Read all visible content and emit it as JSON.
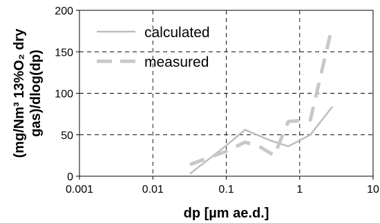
{
  "chart_data": {
    "type": "line",
    "xscale": "log",
    "xlim": [
      0.001,
      10
    ],
    "ylim": [
      0,
      200
    ],
    "grid": true,
    "legend_position": "top-left",
    "xlabel": "dp [µm ae.d.]",
    "ylabel_lines": [
      "(mg/Nm³ 13%O₂ dry",
      "gas)/dlog(dp)"
    ],
    "x_ticks": [
      {
        "value": 0.001,
        "label": "0.001"
      },
      {
        "value": 0.01,
        "label": "0.01"
      },
      {
        "value": 0.1,
        "label": "0.1"
      },
      {
        "value": 1,
        "label": "1"
      },
      {
        "value": 10,
        "label": "10"
      }
    ],
    "y_ticks": [
      {
        "value": 0,
        "label": "0"
      },
      {
        "value": 50,
        "label": "50"
      },
      {
        "value": 100,
        "label": "100"
      },
      {
        "value": 150,
        "label": "150"
      },
      {
        "value": 200,
        "label": "200"
      }
    ],
    "series": [
      {
        "name": "calculated",
        "color": "#bcbcbc",
        "style": "solid",
        "points": [
          {
            "x": 0.032,
            "y": 3
          },
          {
            "x": 0.1,
            "y": 37
          },
          {
            "x": 0.18,
            "y": 56
          },
          {
            "x": 0.4,
            "y": 43
          },
          {
            "x": 0.7,
            "y": 36
          },
          {
            "x": 1.4,
            "y": 50
          },
          {
            "x": 2.8,
            "y": 84
          }
        ]
      },
      {
        "name": "measured",
        "color": "#c8c8c8",
        "style": "dashed",
        "points": [
          {
            "x": 0.032,
            "y": 14
          },
          {
            "x": 0.1,
            "y": 30
          },
          {
            "x": 0.18,
            "y": 41
          },
          {
            "x": 0.28,
            "y": 36
          },
          {
            "x": 0.45,
            "y": 25
          },
          {
            "x": 0.7,
            "y": 66
          },
          {
            "x": 1.4,
            "y": 68
          },
          {
            "x": 2.6,
            "y": 170
          }
        ]
      }
    ]
  }
}
